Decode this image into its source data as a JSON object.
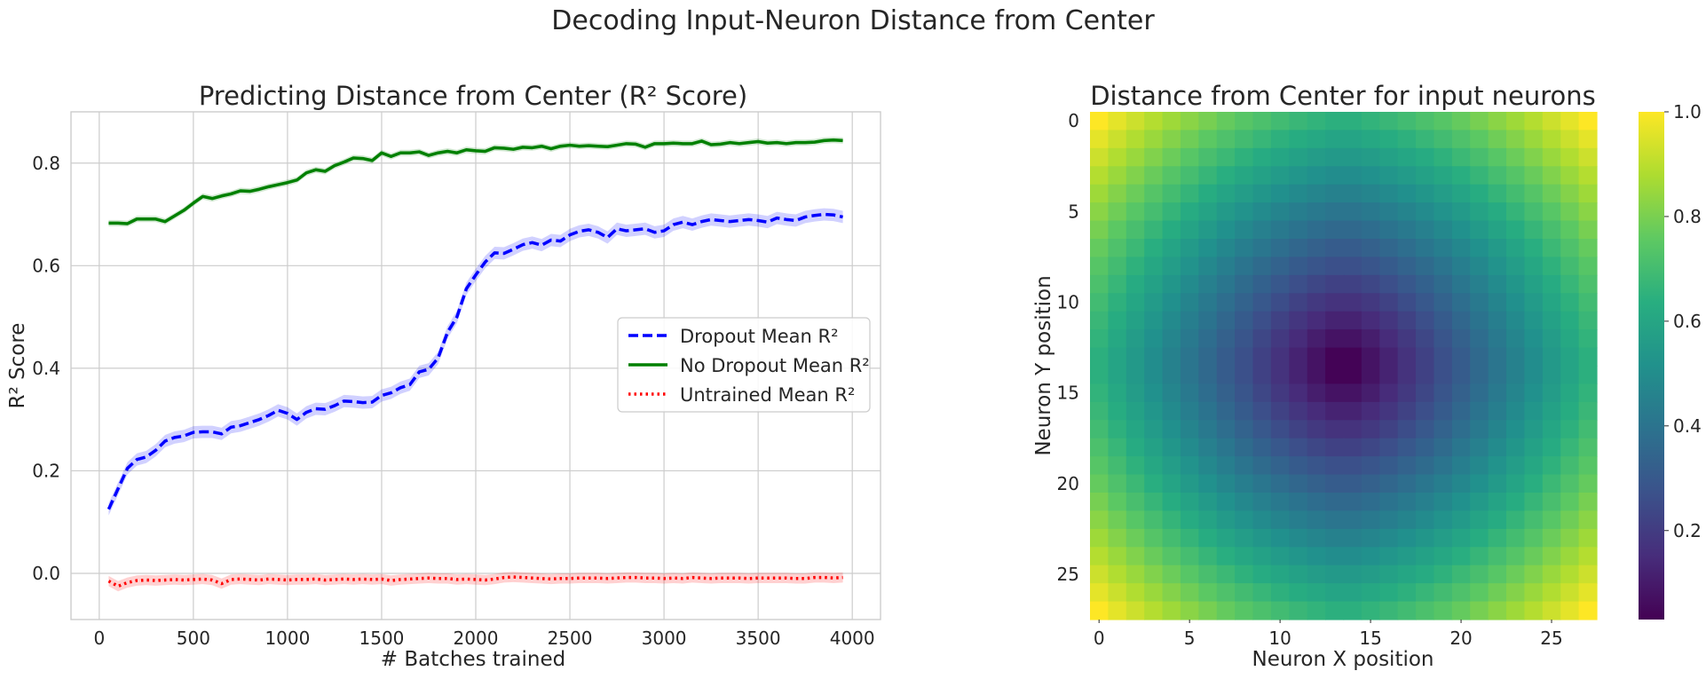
{
  "figure": {
    "suptitle": "Decoding Input-Neuron Distance from Center"
  },
  "chart_data": [
    {
      "type": "line",
      "title": "Predicting Distance from Center (R² Score)",
      "xlabel": "# Batches trained",
      "ylabel": "R² Score",
      "xlim": [
        -150,
        4150
      ],
      "ylim": [
        -0.09,
        0.9
      ],
      "xticks": [
        0,
        500,
        1000,
        1500,
        2000,
        2500,
        3000,
        3500,
        4000
      ],
      "yticks": [
        0.0,
        0.2,
        0.4,
        0.6,
        0.8
      ],
      "grid": true,
      "legend": "center-right",
      "x": [
        50,
        100,
        150,
        200,
        250,
        300,
        350,
        400,
        450,
        500,
        550,
        600,
        650,
        700,
        750,
        800,
        850,
        900,
        950,
        1000,
        1050,
        1100,
        1150,
        1200,
        1250,
        1300,
        1350,
        1400,
        1450,
        1500,
        1550,
        1600,
        1650,
        1700,
        1750,
        1800,
        1850,
        1900,
        1950,
        2000,
        2050,
        2100,
        2150,
        2200,
        2250,
        2300,
        2350,
        2400,
        2450,
        2500,
        2550,
        2600,
        2650,
        2700,
        2750,
        2800,
        2850,
        2900,
        2950,
        3000,
        3050,
        3100,
        3150,
        3200,
        3250,
        3300,
        3350,
        3400,
        3450,
        3500,
        3550,
        3600,
        3650,
        3700,
        3750,
        3800,
        3850,
        3900,
        3950
      ],
      "series": [
        {
          "name": "Dropout Mean R²",
          "color": "#0000ff",
          "style": "dashed",
          "band": 0.012,
          "values": [
            0.125,
            0.165,
            0.205,
            0.222,
            0.227,
            0.24,
            0.258,
            0.265,
            0.268,
            0.275,
            0.276,
            0.276,
            0.272,
            0.285,
            0.288,
            0.294,
            0.3,
            0.308,
            0.318,
            0.312,
            0.3,
            0.314,
            0.321,
            0.32,
            0.327,
            0.336,
            0.335,
            0.333,
            0.334,
            0.347,
            0.352,
            0.362,
            0.368,
            0.393,
            0.398,
            0.42,
            0.47,
            0.5,
            0.555,
            0.582,
            0.607,
            0.625,
            0.624,
            0.632,
            0.641,
            0.645,
            0.64,
            0.65,
            0.648,
            0.66,
            0.667,
            0.67,
            0.665,
            0.655,
            0.672,
            0.668,
            0.67,
            0.672,
            0.665,
            0.668,
            0.68,
            0.685,
            0.68,
            0.686,
            0.69,
            0.688,
            0.686,
            0.688,
            0.69,
            0.688,
            0.685,
            0.693,
            0.69,
            0.688,
            0.695,
            0.698,
            0.7,
            0.699,
            0.695
          ]
        },
        {
          "name": "No Dropout Mean R²",
          "color": "#008000",
          "style": "solid",
          "band": 0.006,
          "values": [
            0.683,
            0.683,
            0.682,
            0.691,
            0.691,
            0.691,
            0.686,
            0.697,
            0.708,
            0.722,
            0.735,
            0.731,
            0.736,
            0.74,
            0.746,
            0.745,
            0.749,
            0.754,
            0.758,
            0.762,
            0.767,
            0.781,
            0.787,
            0.784,
            0.795,
            0.802,
            0.81,
            0.809,
            0.805,
            0.82,
            0.813,
            0.82,
            0.82,
            0.822,
            0.815,
            0.82,
            0.823,
            0.82,
            0.826,
            0.824,
            0.823,
            0.83,
            0.829,
            0.827,
            0.831,
            0.83,
            0.833,
            0.828,
            0.833,
            0.835,
            0.833,
            0.834,
            0.833,
            0.832,
            0.835,
            0.838,
            0.837,
            0.831,
            0.838,
            0.838,
            0.839,
            0.838,
            0.838,
            0.843,
            0.836,
            0.837,
            0.84,
            0.838,
            0.84,
            0.842,
            0.839,
            0.84,
            0.838,
            0.84,
            0.84,
            0.841,
            0.844,
            0.845,
            0.844
          ]
        },
        {
          "name": "Untrained Mean R²",
          "color": "#ff0000",
          "style": "dotted",
          "band": 0.01,
          "values": [
            -0.015,
            -0.025,
            -0.018,
            -0.014,
            -0.013,
            -0.014,
            -0.013,
            -0.012,
            -0.013,
            -0.012,
            -0.011,
            -0.013,
            -0.02,
            -0.012,
            -0.011,
            -0.012,
            -0.013,
            -0.011,
            -0.012,
            -0.013,
            -0.012,
            -0.012,
            -0.011,
            -0.013,
            -0.012,
            -0.011,
            -0.012,
            -0.011,
            -0.012,
            -0.011,
            -0.014,
            -0.012,
            -0.011,
            -0.01,
            -0.009,
            -0.01,
            -0.01,
            -0.012,
            -0.011,
            -0.012,
            -0.013,
            -0.011,
            -0.008,
            -0.007,
            -0.008,
            -0.009,
            -0.01,
            -0.011,
            -0.01,
            -0.01,
            -0.009,
            -0.009,
            -0.009,
            -0.01,
            -0.009,
            -0.008,
            -0.008,
            -0.009,
            -0.009,
            -0.01,
            -0.009,
            -0.01,
            -0.008,
            -0.009,
            -0.01,
            -0.009,
            -0.009,
            -0.009,
            -0.01,
            -0.009,
            -0.009,
            -0.009,
            -0.009,
            -0.01,
            -0.01,
            -0.008,
            -0.008,
            -0.009,
            -0.008
          ]
        }
      ]
    },
    {
      "type": "heatmap",
      "title": "Distance from Center for input neurons",
      "xlabel": "Neuron X position",
      "ylabel": "Neuron Y position",
      "rows": 28,
      "cols": 28,
      "center": [
        13.5,
        13.5
      ],
      "values": "normalized euclidean distance of each cell from the center, with a slight diamond bias",
      "xticks": [
        0,
        5,
        10,
        15,
        20,
        25
      ],
      "yticks": [
        0,
        5,
        10,
        15,
        20,
        25
      ],
      "colormap": "viridis",
      "colorbar": {
        "range": [
          0.03,
          1.0
        ],
        "ticks": [
          0.2,
          0.4,
          0.6,
          0.8,
          1.0
        ]
      }
    }
  ]
}
